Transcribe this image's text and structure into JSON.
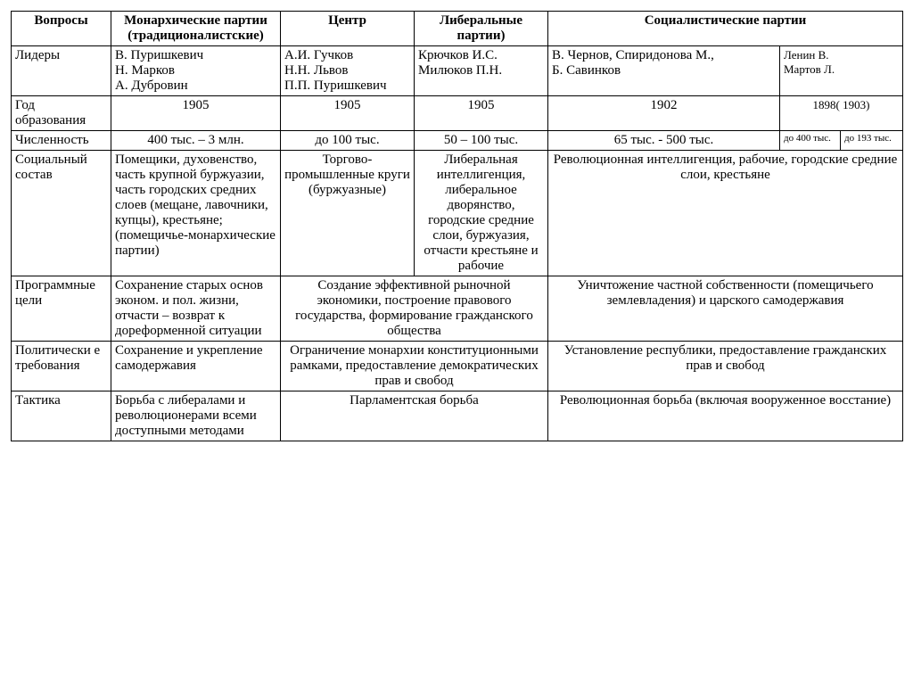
{
  "table": {
    "columns": {
      "c0": 112,
      "c1": 190,
      "c2": 150,
      "c3": 150,
      "c4": 130,
      "c5": 130,
      "c6": 68,
      "c7": 70
    },
    "header": {
      "q": "Вопросы",
      "monarch": "Монархические партии (традиционалистские)",
      "center": "Центр",
      "liberal": "Либеральные партии)",
      "social": "Социалистические  партии"
    },
    "rows": {
      "leaders": {
        "label": "Лидеры",
        "monarch": "В. Пуришкевич\nН. Марков\nА. Дубровин",
        "center": "А.И. Гучков\nН.Н. Львов\nП.П. Пуришкевич",
        "liberal": "Крючков И.С.\nМилюков П.Н.",
        "social_a": "В. Чернов, Спиридонова М.,\nБ. Савинков",
        "social_b": "Ленин   В.\nМартов Л."
      },
      "year": {
        "label": "Год образования",
        "monarch": "1905",
        "center": "1905",
        "liberal": "1905",
        "social_a": "1902",
        "social_b": "1898( 1903)"
      },
      "count": {
        "label": "Численность",
        "monarch": "400 тыс. – 3 млн.",
        "center": "до 100 тыс.",
        "liberal": "50 – 100 тыс.",
        "social_a": "65 тыс. - 500 тыс.",
        "social_b1": "до 400 тыс.",
        "social_b2": "до 193 тыс."
      },
      "social": {
        "label": "Социальный состав",
        "monarch": "Помещики, духовенство, часть крупной буржуазии, часть городских средних слоев (мещане, лавочники, купцы), крестьяне; (помещичье-монархические партии)",
        "center": "Торгово-промышленные круги (буржуазные)",
        "liberal": "Либеральная интеллигенция, либеральное дворянство, городские средние слои, буржуазия, отчасти крестьяне и рабочие",
        "social_all": "Революционная интеллигенция, рабочие, городские средние слои, крестьяне"
      },
      "goals": {
        "label": "Программные цели",
        "monarch": "Сохранение старых основ эконом. и пол. жизни, отчасти – возврат к дореформенной ситуации",
        "center_liberal": "Создание эффективной рыночной экономики, построение правового государства, формирование гражданского общества",
        "social_all": "Уничтожение частной собственности (помещичьего землевладения) и царского самодержавия"
      },
      "demands": {
        "label": "Политически е требования",
        "monarch": "Сохранение и укрепление самодержавия",
        "center_liberal": "Ограничение монархии конституционными рамками, предоставление демократических прав и свобод",
        "social_all": "Установление республики, предоставление гражданских прав и свобод"
      },
      "tactics": {
        "label": "Тактика",
        "monarch": "Борьба с либералами и революционерами всеми доступными методами",
        "center_liberal": "Парламентская борьба",
        "social_all": "Революционная борьба (включая вооруженное восстание)"
      }
    },
    "style": {
      "font_family": "Times New Roman",
      "font_size_pt": 12,
      "border_color": "#000000",
      "background_color": "#ffffff",
      "text_color": "#000000"
    }
  }
}
